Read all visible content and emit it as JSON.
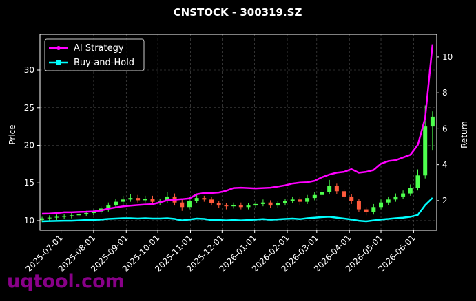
{
  "chart_data": {
    "type": "candlestick",
    "title": "CNSTOCK - 300319.SZ",
    "ylabel": "Price",
    "y2label": "Return",
    "watermark": "uqtool.com",
    "x": [
      "2025-06-13",
      "2025-06-20",
      "2025-06-27",
      "2025-07-04",
      "2025-07-11",
      "2025-07-18",
      "2025-07-25",
      "2025-08-01",
      "2025-08-08",
      "2025-08-15",
      "2025-08-22",
      "2025-08-29",
      "2025-09-05",
      "2025-09-12",
      "2025-09-19",
      "2025-09-26",
      "2025-10-03",
      "2025-10-10",
      "2025-10-17",
      "2025-10-24",
      "2025-10-31",
      "2025-11-07",
      "2025-11-14",
      "2025-11-21",
      "2025-11-28",
      "2025-12-05",
      "2025-12-12",
      "2025-12-19",
      "2025-12-26",
      "2026-01-02",
      "2026-01-09",
      "2026-01-16",
      "2026-01-23",
      "2026-01-30",
      "2026-02-06",
      "2026-02-13",
      "2026-02-20",
      "2026-02-27",
      "2026-03-06",
      "2026-03-13",
      "2026-03-20",
      "2026-03-27",
      "2026-04-03",
      "2026-04-10",
      "2026-04-17",
      "2026-04-24",
      "2026-05-01",
      "2026-05-08",
      "2026-05-15",
      "2026-05-22",
      "2026-05-29",
      "2026-06-05",
      "2026-06-12",
      "2026-06-19"
    ],
    "open": [
      10.1,
      10.3,
      10.4,
      10.5,
      10.6,
      10.7,
      10.9,
      11.0,
      11.2,
      11.6,
      12.0,
      12.5,
      12.8,
      13.0,
      12.7,
      12.9,
      12.5,
      12.6,
      13.2,
      12.4,
      11.8,
      12.6,
      13.0,
      12.8,
      12.3,
      12.0,
      11.9,
      12.1,
      11.8,
      12.0,
      12.2,
      12.4,
      12.0,
      12.3,
      12.6,
      12.8,
      12.5,
      13.0,
      13.4,
      13.8,
      14.6,
      13.9,
      13.2,
      12.6,
      11.5,
      11.1,
      11.8,
      12.4,
      12.8,
      13.2,
      13.6,
      14.3,
      16.0,
      22.5
    ],
    "high": [
      10.5,
      10.7,
      10.8,
      10.9,
      11.0,
      11.2,
      11.3,
      11.5,
      11.9,
      12.4,
      12.9,
      13.3,
      13.5,
      13.4,
      13.3,
      13.3,
      12.9,
      13.8,
      13.6,
      12.8,
      12.9,
      13.4,
      13.3,
      13.1,
      12.6,
      12.3,
      12.4,
      12.4,
      12.3,
      12.5,
      12.8,
      12.7,
      12.6,
      12.9,
      13.2,
      13.2,
      13.4,
      13.8,
      14.2,
      15.4,
      14.9,
      14.2,
      13.5,
      12.9,
      11.8,
      12.2,
      12.8,
      13.2,
      13.6,
      14.0,
      14.8,
      16.8,
      25.3,
      24.5
    ],
    "low": [
      9.8,
      10.0,
      10.1,
      10.2,
      10.3,
      10.4,
      10.6,
      10.7,
      10.9,
      11.2,
      11.7,
      12.1,
      12.5,
      12.4,
      12.4,
      12.2,
      12.1,
      12.3,
      12.0,
      11.3,
      11.5,
      12.3,
      12.5,
      12.0,
      11.7,
      11.5,
      11.6,
      11.5,
      11.5,
      11.7,
      11.9,
      11.7,
      11.7,
      12.0,
      12.3,
      12.1,
      12.2,
      12.7,
      13.1,
      13.5,
      13.5,
      12.8,
      12.2,
      11.1,
      10.7,
      10.8,
      11.5,
      12.1,
      12.5,
      12.9,
      13.3,
      14.0,
      15.6,
      19.3
    ],
    "close": [
      10.3,
      10.4,
      10.5,
      10.6,
      10.7,
      10.9,
      11.0,
      11.2,
      11.6,
      12.0,
      12.5,
      12.8,
      13.0,
      12.7,
      12.9,
      12.5,
      12.6,
      13.2,
      12.4,
      11.8,
      12.6,
      13.0,
      12.8,
      12.3,
      12.0,
      11.9,
      12.1,
      11.8,
      12.0,
      12.2,
      12.4,
      12.0,
      12.3,
      12.6,
      12.8,
      12.5,
      13.0,
      13.4,
      13.8,
      14.6,
      13.9,
      13.2,
      12.6,
      11.5,
      11.1,
      11.8,
      12.4,
      12.8,
      13.2,
      13.6,
      14.3,
      16.0,
      22.5,
      23.8
    ],
    "up_color": "#4dff4d",
    "down_color": "#ff5a3c",
    "series": [
      {
        "name": "AI Strategy",
        "color": "#ff00ff",
        "axis": "y2",
        "marker": "circle",
        "values": [
          1.27,
          1.28,
          1.3,
          1.35,
          1.35,
          1.37,
          1.38,
          1.4,
          1.45,
          1.55,
          1.62,
          1.68,
          1.72,
          1.75,
          1.78,
          1.8,
          1.9,
          2.02,
          2.05,
          2.08,
          2.12,
          2.35,
          2.42,
          2.42,
          2.45,
          2.55,
          2.7,
          2.72,
          2.7,
          2.68,
          2.7,
          2.72,
          2.78,
          2.85,
          2.95,
          3.0,
          3.02,
          3.1,
          3.3,
          3.45,
          3.55,
          3.6,
          3.75,
          3.55,
          3.6,
          3.7,
          4.05,
          4.2,
          4.25,
          4.4,
          4.55,
          5.1,
          6.6,
          10.7
        ]
      },
      {
        "name": "Buy-and-Hold",
        "color": "#00ffff",
        "axis": "y2",
        "marker": "square",
        "values": [
          0.85,
          0.86,
          0.87,
          0.88,
          0.88,
          0.9,
          0.92,
          0.93,
          0.95,
          0.98,
          1.0,
          1.02,
          1.02,
          1.0,
          1.02,
          1.0,
          1.0,
          1.02,
          0.98,
          0.9,
          0.95,
          1.0,
          0.98,
          0.92,
          0.92,
          0.9,
          0.92,
          0.9,
          0.92,
          0.95,
          0.97,
          0.94,
          0.96,
          0.98,
          1.0,
          0.97,
          1.02,
          1.05,
          1.08,
          1.1,
          1.05,
          1.0,
          0.95,
          0.88,
          0.85,
          0.9,
          0.95,
          0.98,
          1.02,
          1.05,
          1.1,
          1.2,
          1.75,
          2.15
        ]
      }
    ],
    "xlim": [
      "2025-06-11",
      "2026-06-23"
    ],
    "xticks": [
      "2025-07-01",
      "2025-08-01",
      "2025-09-01",
      "2025-10-01",
      "2025-11-01",
      "2025-12-01",
      "2026-01-01",
      "2026-02-01",
      "2026-03-01",
      "2026-04-01",
      "2026-05-01",
      "2026-06-01"
    ],
    "ylim": [
      8.72,
      34.75
    ],
    "yticks": [
      10,
      15,
      20,
      25,
      30
    ],
    "y2lim": [
      0.35,
      11.26
    ],
    "y2ticks": [
      2,
      4,
      6,
      8,
      10
    ],
    "grid": true,
    "legend": "upper left"
  }
}
